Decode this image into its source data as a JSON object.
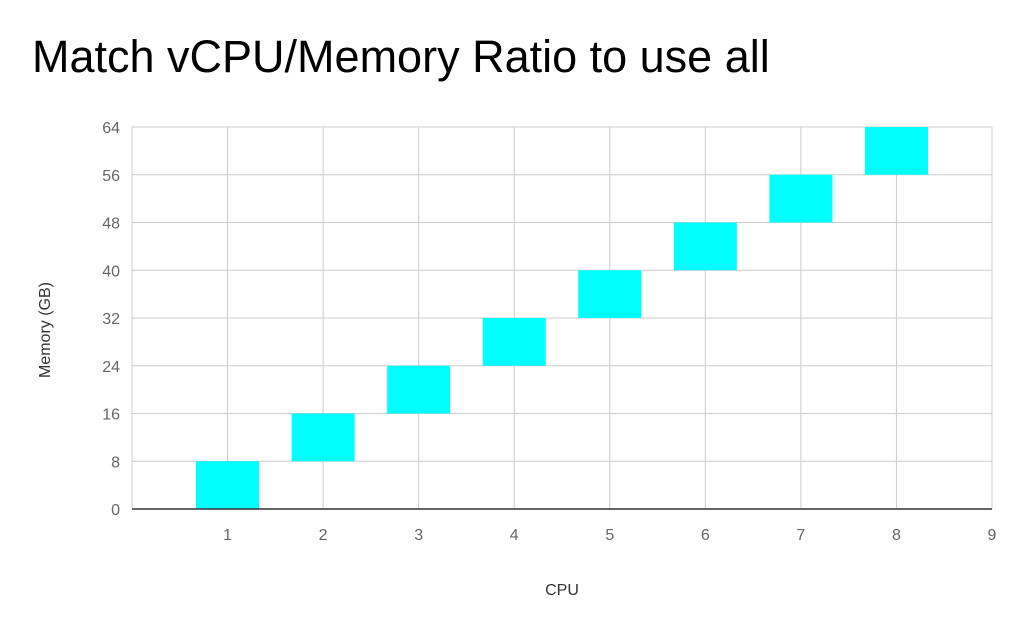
{
  "chart_data": {
    "type": "bar",
    "title": "Match vCPU/Memory Ratio to use all",
    "xlabel": "CPU",
    "ylabel": "Memory (GB)",
    "xlim": [
      0,
      9
    ],
    "ylim": [
      0,
      64
    ],
    "x_ticks": [
      1,
      2,
      3,
      4,
      5,
      6,
      7,
      8,
      9
    ],
    "y_ticks": [
      0,
      8,
      16,
      24,
      32,
      40,
      48,
      56,
      64
    ],
    "grid": true,
    "legend": "none",
    "colors": {
      "bar": "#00ffff",
      "grid": "#cccccc",
      "axis": "#333333",
      "tick_label": "#666666",
      "axis_label": "#333333"
    },
    "boxes": [
      {
        "x": 1,
        "low": 0,
        "high": 8
      },
      {
        "x": 2,
        "low": 8,
        "high": 16
      },
      {
        "x": 3,
        "low": 16,
        "high": 24
      },
      {
        "x": 4,
        "low": 24,
        "high": 32
      },
      {
        "x": 5,
        "low": 32,
        "high": 40
      },
      {
        "x": 6,
        "low": 40,
        "high": 48
      },
      {
        "x": 7,
        "low": 48,
        "high": 56
      },
      {
        "x": 8,
        "low": 56,
        "high": 64
      }
    ]
  }
}
